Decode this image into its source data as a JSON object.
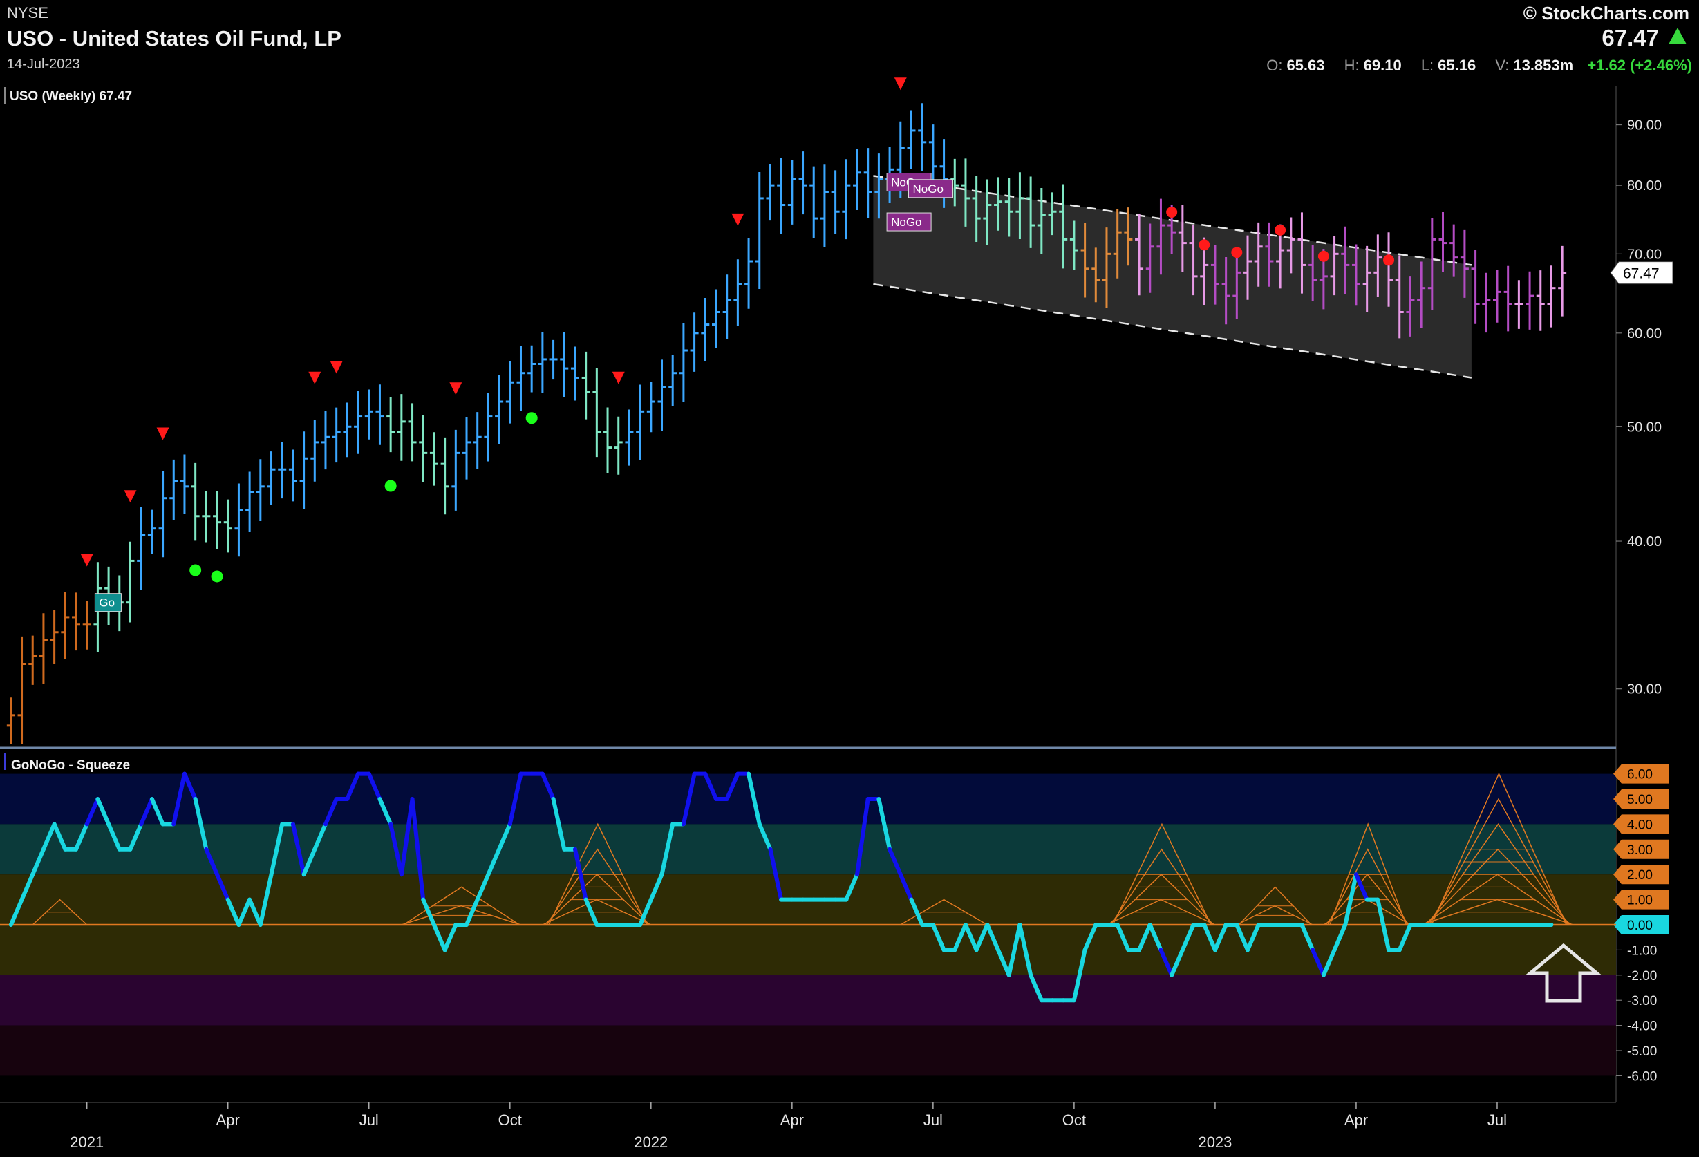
{
  "header": {
    "exchange": "NYSE",
    "title": "USO - United States Oil Fund, LP",
    "date": "14-Jul-2023",
    "brand": "© StockCharts.com",
    "last": "67.47",
    "open_label": "O:",
    "open": "65.63",
    "high_label": "H:",
    "high": "69.10",
    "low_label": "L:",
    "low": "65.16",
    "vol_label": "V:",
    "vol": "13.853m",
    "change": "+1.62 (+2.46%)",
    "change_color": "#37d93d"
  },
  "chart_data": [
    {
      "type": "ohlc",
      "title": "USO (Weekly) 67.47",
      "scale": "log",
      "ylim": [
        27,
        97
      ],
      "y_ticks": [
        30,
        40,
        50,
        60,
        70,
        80,
        90
      ],
      "y_tick_labels": [
        "30.00",
        "40.00",
        "50.00",
        "60.00",
        "70.00",
        "80.00",
        "90.00"
      ],
      "last_value_label": "67.47",
      "x_ticks": [
        {
          "label": "2021",
          "week": 7,
          "major": true
        },
        {
          "label": "Apr",
          "week": 20
        },
        {
          "label": "Jul",
          "week": 33
        },
        {
          "label": "Oct",
          "week": 46
        },
        {
          "label": "2022",
          "week": 59,
          "major": true
        },
        {
          "label": "Apr",
          "week": 72
        },
        {
          "label": "Jul",
          "week": 85
        },
        {
          "label": "Oct",
          "week": 98
        },
        {
          "label": "2023",
          "week": 111,
          "major": true
        },
        {
          "label": "Apr",
          "week": 124
        },
        {
          "label": "Jul",
          "week": 137
        }
      ],
      "weeks": 144,
      "closes": [
        28.5,
        31.5,
        32.0,
        33.0,
        33.5,
        34.5,
        34.0,
        34.0,
        36.5,
        35.5,
        35.5,
        38.5,
        40.5,
        41.0,
        43.5,
        45.0,
        44.5,
        42.0,
        42.0,
        41.5,
        41.0,
        42.5,
        44.0,
        44.5,
        46.0,
        46.0,
        45.0,
        47.0,
        48.5,
        49.0,
        49.5,
        50.0,
        51.0,
        51.5,
        51.0,
        49.5,
        50.5,
        48.5,
        47.5,
        46.5,
        44.5,
        47.5,
        48.5,
        49.0,
        51.0,
        52.5,
        54.5,
        55.5,
        56.5,
        57.0,
        57.0,
        56.0,
        55.0,
        53.5,
        49.5,
        48.0,
        48.5,
        49.5,
        51.5,
        52.5,
        54.0,
        55.5,
        58.0,
        60.0,
        61.0,
        62.5,
        64.0,
        66.0,
        69.0,
        78.0,
        80.0,
        77.0,
        81.0,
        80.0,
        75.0,
        79.0,
        76.0,
        80.0,
        82.0,
        79.0,
        81.0,
        82.5,
        86.0,
        89.0,
        87.0,
        83.0,
        81.0,
        80.0,
        78.0,
        75.0,
        77.0,
        77.5,
        76.0,
        78.0,
        74.0,
        75.5,
        76.0,
        72.0,
        70.5,
        68.0,
        66.5,
        70.0,
        73.0,
        72.0,
        68.0,
        71.0,
        74.0,
        73.0,
        71.5,
        67.0,
        68.5,
        66.0,
        64.5,
        67.5,
        69.0,
        71.0,
        69.0,
        70.5,
        72.0,
        68.5,
        66.5,
        67.0,
        70.0,
        68.5,
        66.0,
        67.5,
        69.5,
        66.5,
        62.5,
        64.0,
        65.5,
        72.0,
        71.5,
        69.5,
        68.0,
        63.5,
        64.0,
        65.0,
        63.5,
        63.5,
        64.5,
        63.5,
        65.5,
        67.47
      ],
      "regimes": [
        {
          "from": 0,
          "to": 7,
          "color": "#d06a1e"
        },
        {
          "from": 8,
          "to": 11,
          "color": "#7fe7c4"
        },
        {
          "from": 12,
          "to": 16,
          "color": "#3ba7ff"
        },
        {
          "from": 17,
          "to": 20,
          "color": "#7fe7c4"
        },
        {
          "from": 21,
          "to": 34,
          "color": "#3ba7ff"
        },
        {
          "from": 35,
          "to": 40,
          "color": "#7fe7c4"
        },
        {
          "from": 41,
          "to": 52,
          "color": "#3ba7ff"
        },
        {
          "from": 53,
          "to": 56,
          "color": "#7fe7c4"
        },
        {
          "from": 57,
          "to": 86,
          "color": "#3ba7ff"
        },
        {
          "from": 87,
          "to": 98,
          "color": "#7fe7c4"
        },
        {
          "from": 99,
          "to": 104,
          "color": "#e08a3a"
        },
        {
          "from": 105,
          "to": 143,
          "color": "#b44cc4"
        }
      ],
      "bright_weeks": [
        104,
        108,
        109,
        110,
        114,
        115,
        117,
        118,
        119,
        122,
        125,
        126,
        127,
        128,
        139,
        141,
        142,
        143
      ],
      "bright_color": "#e79ae6",
      "down_markers": [
        7,
        11,
        14,
        28,
        30,
        41,
        56,
        67,
        82
      ],
      "up_markers": [
        17,
        19,
        35,
        48
      ],
      "red_dots": [
        107,
        110,
        113,
        117,
        121,
        127
      ],
      "labels": [
        {
          "text": "Go",
          "week": 8,
          "value": 35.5,
          "color": "#0f8f8f"
        },
        {
          "text": "NoGo",
          "week": 81,
          "value": 80.5,
          "color": "#8a2a8a"
        },
        {
          "text": "NoGo",
          "week": 81,
          "value": 74.5,
          "color": "#8a2a8a"
        },
        {
          "text": "NoGo",
          "week": 83,
          "value": 79.5,
          "color": "#8a2a8a"
        }
      ],
      "channel": {
        "start_week": 80,
        "end_week": 134,
        "upper": [
          81.5,
          68.5
        ],
        "lower": [
          66.0,
          55.0
        ]
      }
    },
    {
      "type": "line",
      "title": "GoNoGo - Squeeze",
      "ylim": [
        -7,
        7
      ],
      "y_ticks": [
        -6,
        -5,
        -4,
        -3,
        -2,
        -1,
        0,
        1,
        2,
        3,
        4,
        5,
        6
      ],
      "y_tick_labels": [
        "-6.00",
        "-5.00",
        "-4.00",
        "-3.00",
        "-2.00",
        "-1.00",
        "0.00",
        "1.00",
        "2.00",
        "3.00",
        "4.00",
        "5.00",
        "6.00"
      ],
      "tick_badges": {
        "1": "1.00",
        "2": "2.00",
        "3": "3.00",
        "4": "4.00",
        "5": "5.00",
        "6": "6.00",
        "0": "0.00"
      },
      "bands": [
        {
          "from": 4,
          "to": 6,
          "color": "#020b3a"
        },
        {
          "from": 2,
          "to": 4,
          "color": "#0b3a3a"
        },
        {
          "from": -2,
          "to": 2,
          "color": "#2e2b05"
        },
        {
          "from": -4,
          "to": -2,
          "color": "#2a0430"
        },
        {
          "from": -6,
          "to": -4,
          "color": "#17030e"
        }
      ],
      "oscillator": [
        0,
        1,
        2,
        3,
        4,
        3,
        3,
        4,
        5,
        4,
        3,
        3,
        4,
        5,
        4,
        4,
        6,
        5,
        3,
        2,
        1,
        0,
        1,
        0,
        2,
        4,
        4,
        2,
        3,
        4,
        5,
        5,
        6,
        6,
        5,
        4,
        2,
        5,
        1,
        0,
        -1,
        0,
        0,
        1,
        2,
        3,
        4,
        6,
        6,
        6,
        5,
        3,
        3,
        1,
        0,
        0,
        0,
        0,
        0,
        1,
        2,
        4,
        4,
        6,
        6,
        5,
        5,
        6,
        6,
        4,
        3,
        1,
        1,
        1,
        1,
        1,
        1,
        1,
        2,
        5,
        5,
        3,
        2,
        1,
        0,
        0,
        -1,
        -1,
        0,
        -1,
        0,
        -1,
        -2,
        0,
        -2,
        -3,
        -3,
        -3,
        -3,
        -1,
        0,
        0,
        0,
        -1,
        -1,
        0,
        -1,
        -2,
        -1,
        0,
        0,
        -1,
        0,
        0,
        -1,
        0,
        0,
        0,
        0,
        0,
        -1,
        -2,
        -1,
        0,
        2,
        1,
        1,
        -1,
        -1,
        0,
        0,
        0,
        0,
        0,
        0,
        0,
        0,
        0,
        0,
        0,
        0,
        0,
        0
      ],
      "osc_colors": {
        "go": "#19d7e0",
        "strong": "#1010ee"
      },
      "squeeze": [
        {
          "start": 2,
          "end": 7,
          "peak": 1.0
        },
        {
          "start": 36,
          "end": 47,
          "peak": 1.5
        },
        {
          "start": 49,
          "end": 59,
          "peak": 4.0
        },
        {
          "start": 82,
          "end": 90,
          "peak": 1.0
        },
        {
          "start": 101,
          "end": 111,
          "peak": 4.0
        },
        {
          "start": 113,
          "end": 120,
          "peak": 1.5
        },
        {
          "start": 121,
          "end": 129,
          "peak": 4.0
        },
        {
          "start": 130,
          "end": 144,
          "peak": 6.0
        }
      ],
      "squeeze_color": "#e07820",
      "zero_line_color": "#e07820"
    }
  ]
}
